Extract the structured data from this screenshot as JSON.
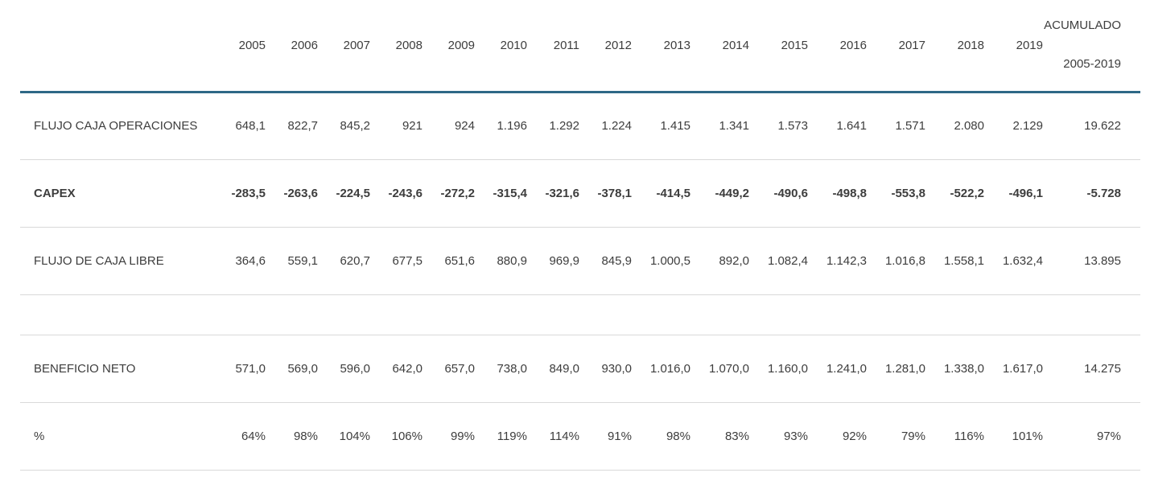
{
  "colors": {
    "header_rule_blue": "#2e6886",
    "row_border_gray": "#d9d9d9",
    "text": "#3d3d3d",
    "background": "#ffffff"
  },
  "table": {
    "header": {
      "years": [
        "2005",
        "2006",
        "2007",
        "2008",
        "2009",
        "2010",
        "2011",
        "2012",
        "2013",
        "2014",
        "2015",
        "2016",
        "2017",
        "2018",
        "2019"
      ],
      "acumulado_line1": "ACUMULADO",
      "acumulado_line2": "2005-2019"
    },
    "rows": [
      {
        "label": "FLUJO CAJA OPERACIONES",
        "values": [
          "648,1",
          "822,7",
          "845,2",
          "921",
          "924",
          "1.196",
          "1.292",
          "1.224",
          "1.415",
          "1.341",
          "1.573",
          "1.641",
          "1.571",
          "2.080",
          "2.129"
        ],
        "total": "19.622"
      },
      {
        "label": "CAPEX",
        "values": [
          "-283,5",
          "-263,6",
          "-224,5",
          "-243,6",
          "-272,2",
          "-315,4",
          "-321,6",
          "-378,1",
          "-414,5",
          "-449,2",
          "-490,6",
          "-498,8",
          "-553,8",
          "-522,2",
          "-496,1"
        ],
        "total": "-5.728"
      },
      {
        "label": "FLUJO DE CAJA LIBRE",
        "values": [
          "364,6",
          "559,1",
          "620,7",
          "677,5",
          "651,6",
          "880,9",
          "969,9",
          "845,9",
          "1.000,5",
          "892,0",
          "1.082,4",
          "1.142,3",
          "1.016,8",
          "1.558,1",
          "1.632,4"
        ],
        "total": "13.895"
      },
      {
        "label": "BENEFICIO NETO",
        "values": [
          "571,0",
          "569,0",
          "596,0",
          "642,0",
          "657,0",
          "738,0",
          "849,0",
          "930,0",
          "1.016,0",
          "1.070,0",
          "1.160,0",
          "1.241,0",
          "1.281,0",
          "1.338,0",
          "1.617,0"
        ],
        "total": "14.275"
      },
      {
        "label": "%",
        "values": [
          "64%",
          "98%",
          "104%",
          "106%",
          "99%",
          "119%",
          "114%",
          "91%",
          "98%",
          "83%",
          "93%",
          "92%",
          "79%",
          "116%",
          "101%"
        ],
        "total": "97%"
      }
    ]
  },
  "chart_data": {
    "type": "table",
    "title": "",
    "categories": [
      2005,
      2006,
      2007,
      2008,
      2009,
      2010,
      2011,
      2012,
      2013,
      2014,
      2015,
      2016,
      2017,
      2018,
      2019
    ],
    "accumulated_column_label": "ACUMULADO 2005-2019",
    "series": [
      {
        "name": "FLUJO CAJA OPERACIONES",
        "values": [
          648.1,
          822.7,
          845.2,
          921,
          924,
          1196,
          1292,
          1224,
          1415,
          1341,
          1573,
          1641,
          1571,
          2080,
          2129
        ],
        "accumulated": 19622
      },
      {
        "name": "CAPEX",
        "values": [
          -283.5,
          -263.6,
          -224.5,
          -243.6,
          -272.2,
          -315.4,
          -321.6,
          -378.1,
          -414.5,
          -449.2,
          -490.6,
          -498.8,
          -553.8,
          -522.2,
          -496.1
        ],
        "accumulated": -5728
      },
      {
        "name": "FLUJO DE CAJA LIBRE",
        "values": [
          364.6,
          559.1,
          620.7,
          677.5,
          651.6,
          880.9,
          969.9,
          845.9,
          1000.5,
          892.0,
          1082.4,
          1142.3,
          1016.8,
          1558.1,
          1632.4
        ],
        "accumulated": 13895
      },
      {
        "name": "BENEFICIO NETO",
        "values": [
          571.0,
          569.0,
          596.0,
          642.0,
          657.0,
          738.0,
          849.0,
          930.0,
          1016.0,
          1070.0,
          1160.0,
          1241.0,
          1281.0,
          1338.0,
          1617.0
        ],
        "accumulated": 14275
      },
      {
        "name": "%",
        "values": [
          64,
          98,
          104,
          106,
          99,
          119,
          114,
          91,
          98,
          83,
          93,
          92,
          79,
          116,
          101
        ],
        "accumulated": 97,
        "unit": "percent"
      }
    ]
  }
}
